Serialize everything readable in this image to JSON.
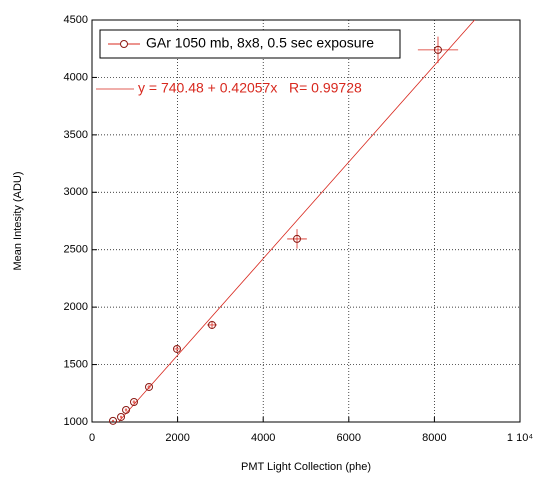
{
  "chart_data": {
    "type": "scatter",
    "xlabel": "PMT Light Collection  (phe)",
    "ylabel": "Mean Intesity (ADU)",
    "xlim": [
      0,
      10000
    ],
    "ylim": [
      1000,
      4500
    ],
    "xticks": [
      0,
      2000,
      4000,
      6000,
      8000,
      {
        "value": 10000,
        "label": "1 10⁴"
      }
    ],
    "yticks": [
      1000,
      1500,
      2000,
      2500,
      3000,
      3500,
      4000,
      4500
    ],
    "grid": true,
    "legend": "upper left",
    "annotation": "y = 740.48 + 0.42057x   R= 0.99728",
    "series": [
      {
        "name": "GAr 1050 mb, 8x8, 0.5 sec exposure",
        "color": "#d8281e",
        "x": [
          491,
          678,
          795,
          981,
          1332,
          1986,
          2804,
          4790,
          8084
        ],
        "values": [
          1010,
          1044,
          1105,
          1174,
          1305,
          1636,
          1845,
          2594,
          4240
        ],
        "x_err": [
          25,
          25,
          30,
          35,
          40,
          60,
          117,
          230,
          470
        ],
        "y_err": [
          10,
          12,
          15,
          15,
          20,
          30,
          35,
          85,
          115
        ]
      }
    ]
  }
}
